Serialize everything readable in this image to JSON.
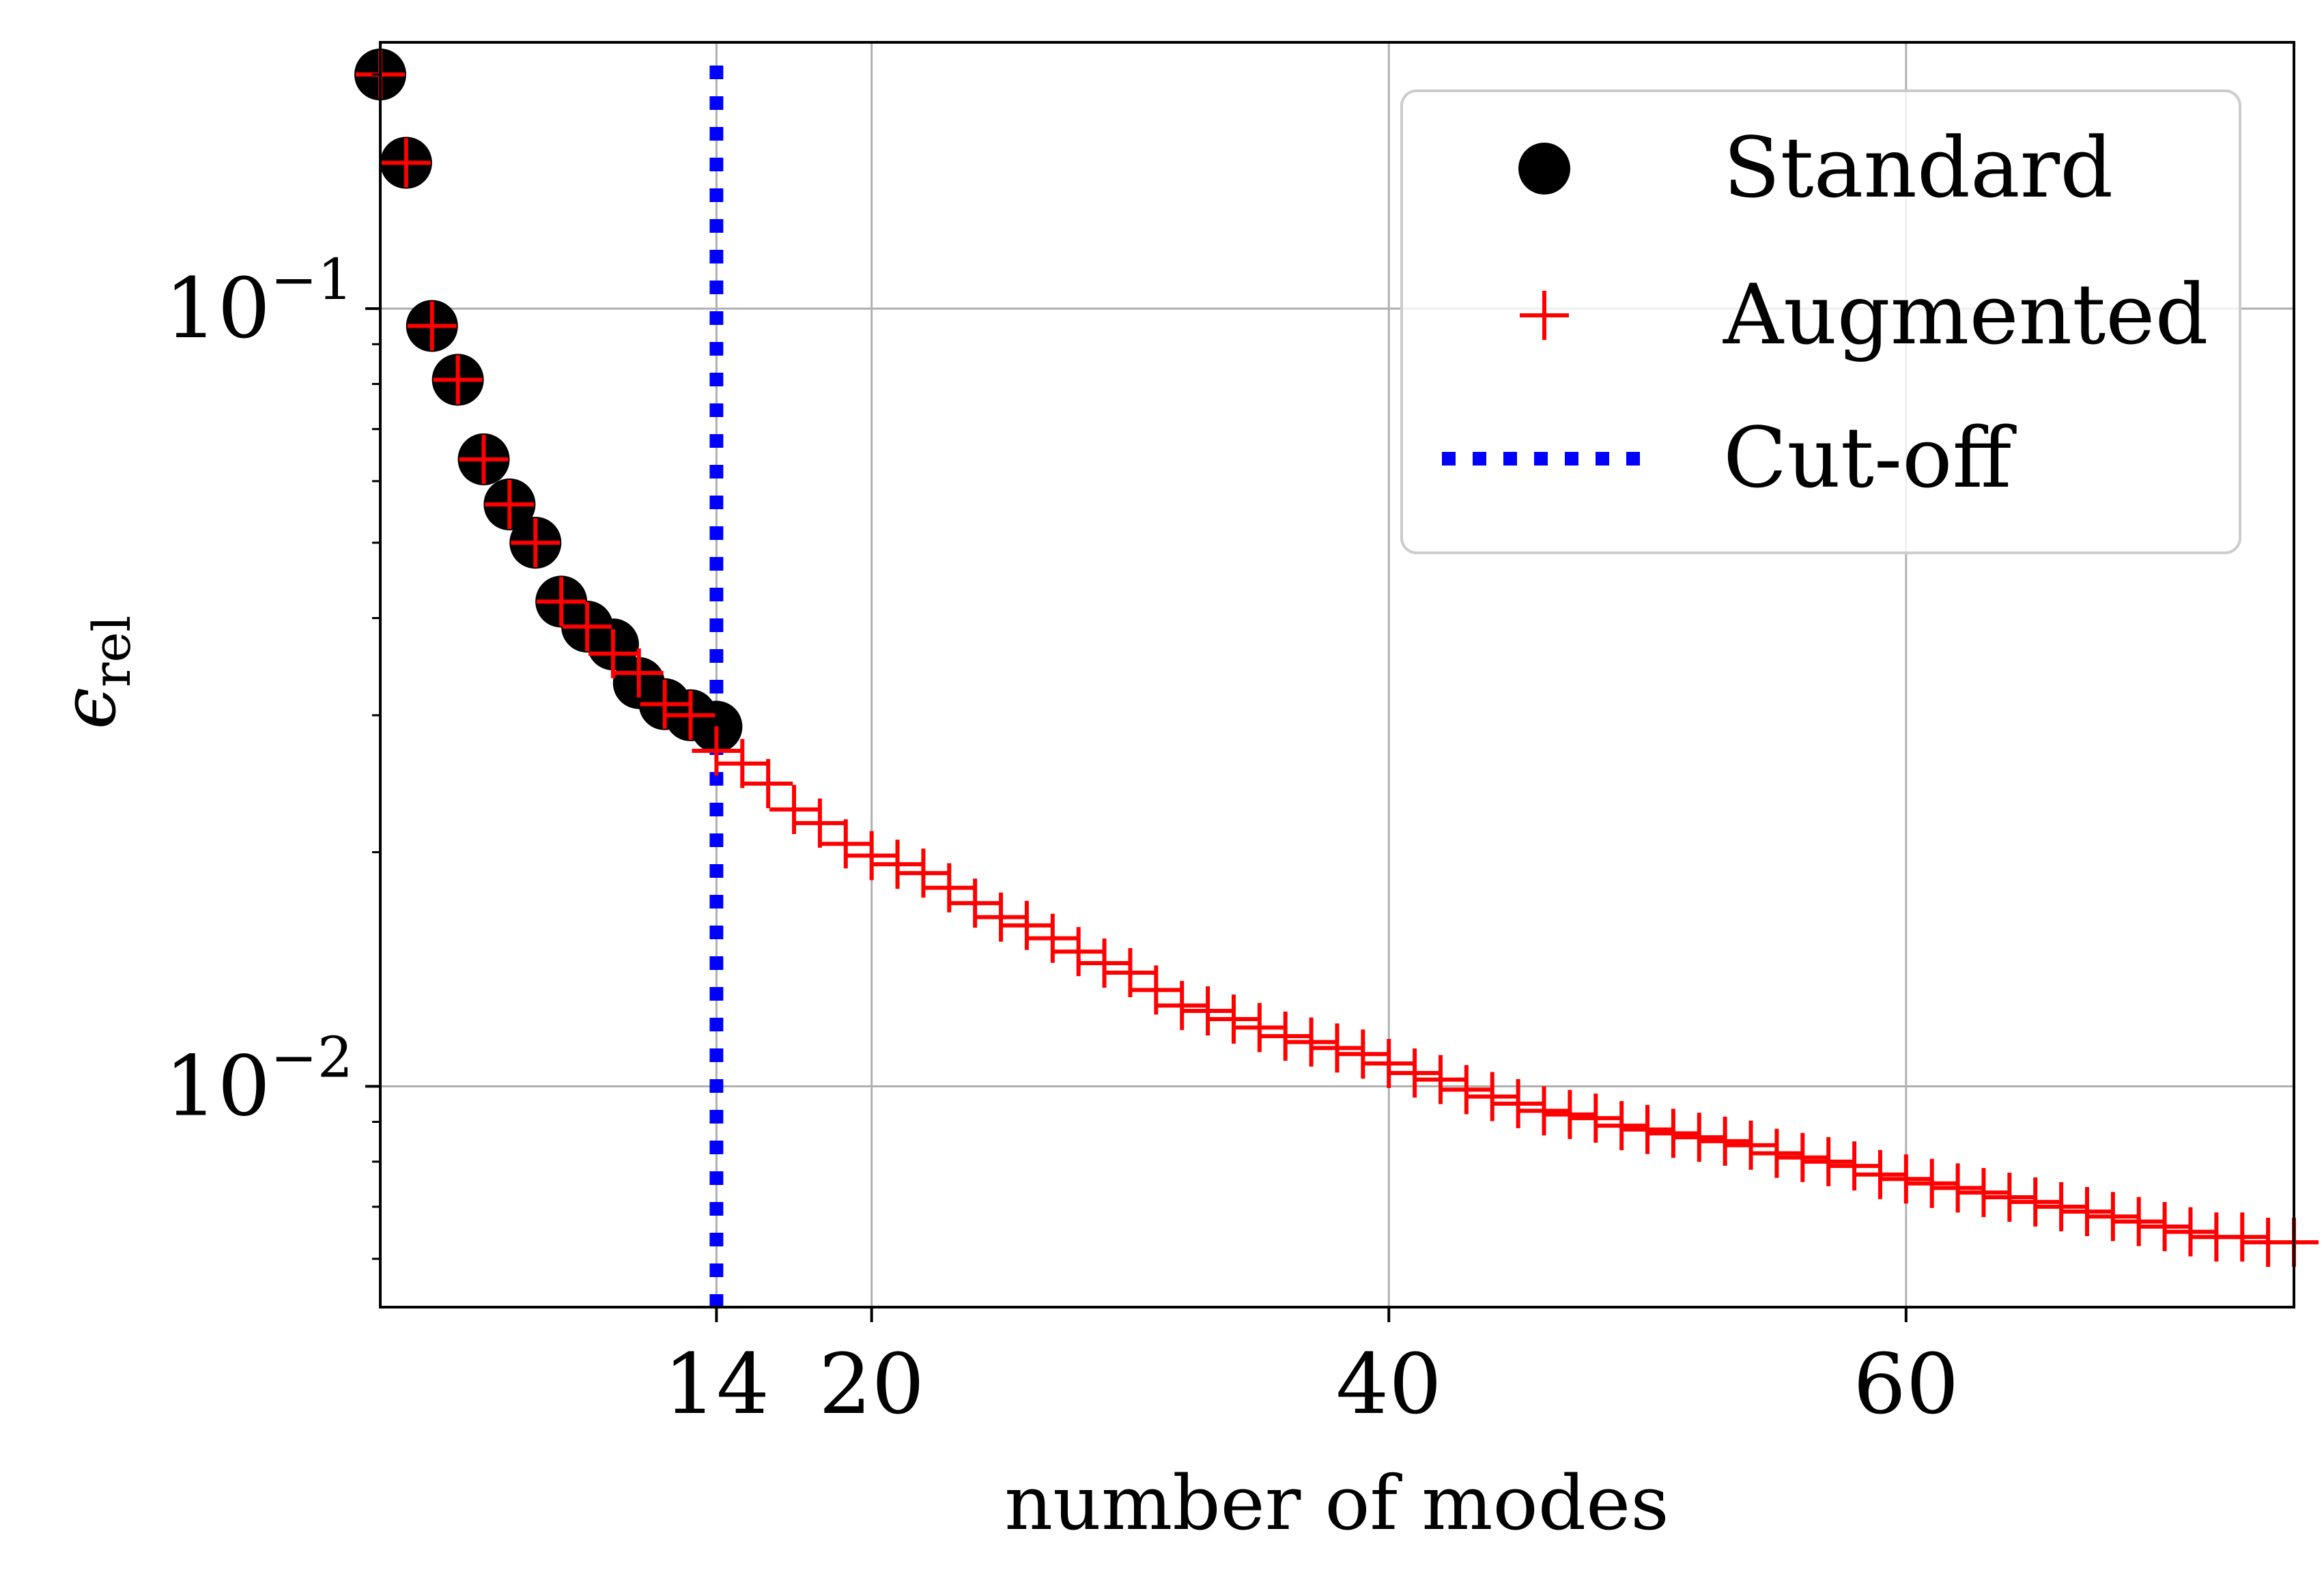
{
  "chart_data": {
    "type": "scatter",
    "title": "",
    "xlabel": "number of modes",
    "ylabel_base": "ϵ",
    "ylabel_sub": "rel",
    "xlim": [
      1,
      75
    ],
    "ylim": [
      0.0052,
      0.22
    ],
    "yscale": "log",
    "grid": true,
    "x_ticks": [
      {
        "value": 14,
        "label": "14"
      },
      {
        "value": 20,
        "label": "20"
      },
      {
        "value": 40,
        "label": "40"
      },
      {
        "value": 60,
        "label": "60"
      }
    ],
    "y_ticks": [
      {
        "value": 0.1,
        "base": "10",
        "exp": "−1"
      },
      {
        "value": 0.01,
        "base": "10",
        "exp": "−2"
      }
    ],
    "legend": {
      "position": "top-right",
      "entries": [
        {
          "label": "Standard",
          "marker": "circle",
          "color": "#000000"
        },
        {
          "label": "Augmented",
          "marker": "plus",
          "color": "#ff0000"
        },
        {
          "label": "Cut-off",
          "marker": "dotted-line",
          "color": "#0000ff"
        }
      ]
    },
    "series": [
      {
        "name": "Standard",
        "color": "#000000",
        "x": [
          1,
          2,
          3,
          4,
          5,
          6,
          7,
          8,
          9,
          10,
          11,
          12,
          13,
          14
        ],
        "y": [
          0.2,
          0.154,
          0.095,
          0.081,
          0.064,
          0.056,
          0.05,
          0.042,
          0.039,
          0.037,
          0.033,
          0.031,
          0.03,
          0.029
        ]
      },
      {
        "name": "Augmented",
        "color": "#ff0000",
        "x": [
          1,
          2,
          3,
          4,
          5,
          6,
          7,
          8,
          9,
          10,
          11,
          12,
          13,
          14,
          15,
          16,
          17,
          18,
          19,
          20,
          21,
          22,
          23,
          24,
          25,
          26,
          27,
          28,
          29,
          30,
          31,
          32,
          33,
          34,
          35,
          36,
          37,
          38,
          39,
          40,
          41,
          42,
          43,
          44,
          45,
          46,
          47,
          48,
          49,
          50,
          51,
          52,
          53,
          54,
          55,
          56,
          57,
          58,
          59,
          60,
          61,
          62,
          63,
          64,
          65,
          66,
          67,
          68,
          69,
          70,
          71,
          72,
          73,
          74,
          75
        ],
        "y": [
          0.2,
          0.154,
          0.095,
          0.081,
          0.064,
          0.056,
          0.05,
          0.042,
          0.039,
          0.036,
          0.034,
          0.031,
          0.03,
          0.027,
          0.026,
          0.0245,
          0.0227,
          0.0218,
          0.0205,
          0.0198,
          0.0193,
          0.0188,
          0.018,
          0.0172,
          0.0165,
          0.0161,
          0.0155,
          0.0149,
          0.0144,
          0.014,
          0.0133,
          0.0127,
          0.0125,
          0.0122,
          0.0119,
          0.0116,
          0.0114,
          0.0112,
          0.011,
          0.0107,
          0.0104,
          0.0102,
          0.0099,
          0.0097,
          0.0095,
          0.0093,
          0.0092,
          0.0091,
          0.0089,
          0.0088,
          0.0087,
          0.0086,
          0.0085,
          0.0084,
          0.0082,
          0.0081,
          0.008,
          0.0079,
          0.0077,
          0.0076,
          0.0075,
          0.0074,
          0.0073,
          0.0072,
          0.0071,
          0.007,
          0.0069,
          0.0068,
          0.0067,
          0.0066,
          0.0065,
          0.0064,
          0.0064,
          0.0063,
          0.0063
        ]
      }
    ],
    "cutoff": {
      "name": "Cut-off",
      "x": 14,
      "color": "#0000ff"
    }
  }
}
